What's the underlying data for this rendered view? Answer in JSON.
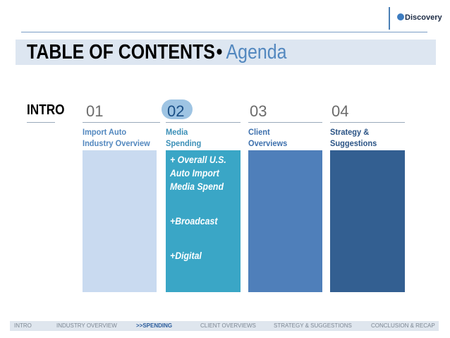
{
  "logo": {
    "brand": "Discovery"
  },
  "title": {
    "main": "TABLE OF CONTENTS",
    "bullet": "•",
    "sub": "Agenda"
  },
  "sections": [
    {
      "number": "INTRO",
      "label_lines": []
    },
    {
      "number": "01",
      "label_lines": [
        "Import Auto",
        "Industry  Overview"
      ]
    },
    {
      "number": "02",
      "label_lines": [
        "Media",
        "Spending"
      ],
      "active": true,
      "items": [
        [
          "+ Overall U.S.",
          "Auto Import",
          "Media Spend"
        ],
        [
          "+Broadcast"
        ],
        [
          "+Digital"
        ]
      ]
    },
    {
      "number": "03",
      "label_lines": [
        "Client",
        "Overviews"
      ]
    },
    {
      "number": "04",
      "label_lines": [
        "Strategy &",
        "Suggestions"
      ]
    }
  ],
  "colors": {
    "accent": "#5388bf",
    "col_01": "#c9daf0",
    "col_02": "#3aa6c6",
    "col_03": "#4f7fba",
    "col_04": "#335f91"
  },
  "footer": {
    "items": [
      "INTRO",
      "INDUSTRY OVERVIEW",
      ">>SPENDING",
      "CLIENT OVERVIEWS",
      "STRATEGY & SUGGESTIONS",
      "CONCLUSION & RECAP"
    ],
    "active_index": 2
  }
}
